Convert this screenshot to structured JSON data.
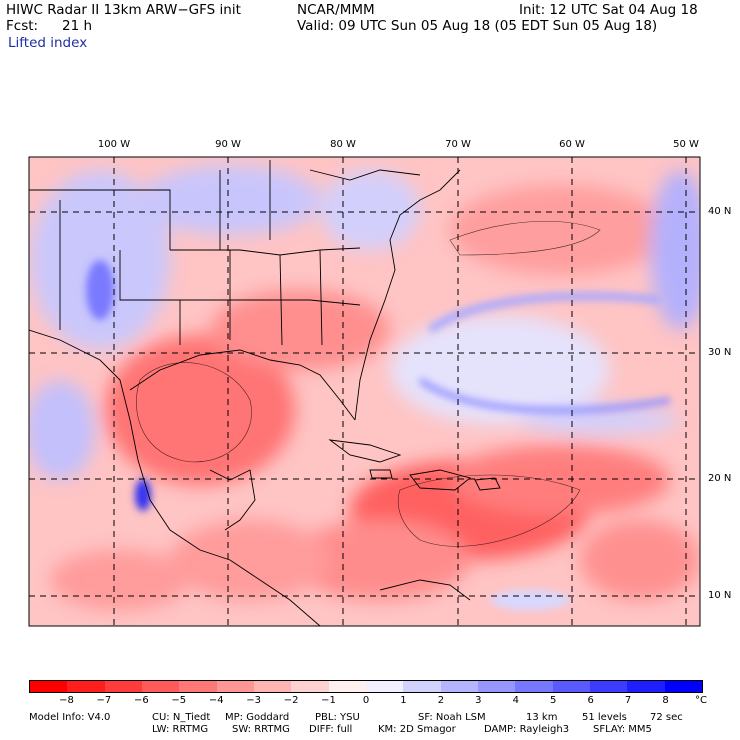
{
  "header": {
    "title": "HIWC Radar II 13km ARW−GFS init",
    "org": "NCAR/MMM",
    "init": "Init: 12 UTC Sat 04 Aug 18",
    "fcst_label": "Fcst:",
    "fcst_value": "21 h",
    "valid": "Valid: 09 UTC Sun 05 Aug 18 (05 EDT Sun 05 Aug 18)",
    "field": "Lifted index"
  },
  "map": {
    "lon_labels": [
      "100 W",
      "90 W",
      "80 W",
      "70 W",
      "60 W",
      "50 W"
    ],
    "lat_labels": [
      "40 N",
      "30 N",
      "20 N",
      "10 N"
    ]
  },
  "colorbar": {
    "labels": [
      "−8",
      "−7",
      "−6",
      "−5",
      "−4",
      "−3",
      "−2",
      "−1",
      "0",
      "1",
      "2",
      "3",
      "4",
      "5",
      "6",
      "7",
      "8"
    ],
    "unit": "°C",
    "colors": [
      "#ff0000",
      "#ff1e1e",
      "#ff3c3c",
      "#ff5a5a",
      "#ff7878",
      "#ff9696",
      "#ffb4b4",
      "#ffd2d2",
      "#fff0f0",
      "#f0f0ff",
      "#d2d2ff",
      "#b4b4ff",
      "#9696ff",
      "#7878ff",
      "#5a5aff",
      "#3c3cff",
      "#1e1eff",
      "#0000ff"
    ]
  },
  "footer": {
    "model": "Model Info: V4.0",
    "cu": "CU: N_Tiedt",
    "mp": "MP: Goddard",
    "pbl": "PBL: YSU",
    "sf": "SF: Noah LSM",
    "res": "13 km",
    "levels": "51 levels",
    "dt": "72 sec",
    "lw": "LW: RRTMG",
    "sw": "SW: RRTMG",
    "diff": "DIFF: full",
    "km": "KM: 2D Smagor",
    "damp": "DAMP: Rayleigh3",
    "sflay": "SFLAY: MM5"
  }
}
